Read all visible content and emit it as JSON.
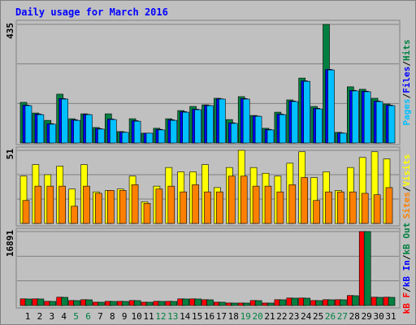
{
  "title": "Daily usage for March 2016",
  "legend_separator": "/",
  "chart_data": [
    {
      "type": "bar",
      "ylim": [
        0,
        435
      ],
      "yticks": [
        435
      ],
      "legend_reversed": true,
      "series": [
        {
          "name": "Hits",
          "color": "#008040",
          "values": [
            149,
            110,
            83,
            179,
            89,
            107,
            57,
            107,
            42,
            89,
            36,
            54,
            89,
            119,
            134,
            140,
            164,
            86,
            170,
            101,
            54,
            113,
            158,
            238,
            134,
            435,
            39,
            206,
            197,
            164,
            143
          ]
        },
        {
          "name": "Files",
          "color": "#0000ff",
          "values": [
            139,
            106,
            71,
            163,
            85,
            105,
            53,
            88,
            40,
            82,
            36,
            50,
            85,
            115,
            124,
            138,
            162,
            74,
            163,
            99,
            50,
            106,
            154,
            228,
            127,
            270,
            37,
            193,
            190,
            154,
            139
          ]
        },
        {
          "name": "Pages",
          "color": "#00c0ff",
          "values": [
            137,
            104,
            69,
            161,
            83,
            104,
            51,
            86,
            39,
            80,
            36,
            48,
            83,
            113,
            122,
            137,
            161,
            72,
            161,
            98,
            48,
            104,
            152,
            226,
            125,
            268,
            36,
            191,
            188,
            152,
            137
          ]
        }
      ]
    },
    {
      "type": "bar",
      "ylim": [
        0,
        51
      ],
      "yticks": [
        51
      ],
      "legend_reversed": true,
      "series": [
        {
          "name": "Visits",
          "color": "#ffff00",
          "values": [
            33,
            41,
            34,
            40,
            24,
            41,
            22,
            23,
            24,
            33,
            15,
            26,
            39,
            36,
            36,
            41,
            25,
            39,
            51,
            39,
            35,
            33,
            42,
            50,
            32,
            36,
            23,
            39,
            46,
            50,
            45
          ]
        },
        {
          "name": "Sites",
          "color": "#ff8000",
          "values": [
            16,
            26,
            26,
            26,
            12,
            26,
            21,
            23,
            23,
            27,
            14,
            24,
            26,
            22,
            27,
            22,
            22,
            33,
            33,
            26,
            26,
            22,
            27,
            32,
            16,
            22,
            22,
            22,
            21,
            20,
            25
          ]
        }
      ]
    },
    {
      "type": "bar",
      "ylim": [
        0,
        16891
      ],
      "yticks": [
        16891
      ],
      "legend_reversed": false,
      "categories": [
        "1",
        "2",
        "3",
        "4",
        "5",
        "6",
        "7",
        "8",
        "9",
        "10",
        "11",
        "12",
        "13",
        "14",
        "15",
        "16",
        "17",
        "18",
        "19",
        "20",
        "21",
        "22",
        "23",
        "24",
        "25",
        "26",
        "27",
        "28",
        "29",
        "30",
        "31"
      ],
      "category_colors": [
        "#000000",
        "#000000",
        "#000000",
        "#000000",
        "#008040",
        "#008040",
        "#000000",
        "#000000",
        "#000000",
        "#000000",
        "#000000",
        "#008040",
        "#008040",
        "#000000",
        "#000000",
        "#000000",
        "#000000",
        "#000000",
        "#008040",
        "#008040",
        "#000000",
        "#000000",
        "#000000",
        "#000000",
        "#000000",
        "#008040",
        "#008040",
        "#000000",
        "#000000",
        "#000000",
        "#000000"
      ],
      "series": [
        {
          "name": "kB F",
          "color": "#ff0000",
          "values": [
            1520,
            1520,
            950,
            1900,
            1140,
            1330,
            760,
            950,
            950,
            1140,
            760,
            950,
            950,
            1520,
            1520,
            1330,
            760,
            570,
            570,
            1140,
            570,
            1330,
            1710,
            1710,
            1140,
            1330,
            1330,
            2280,
            16891,
            1900,
            1900
          ]
        },
        {
          "name": "kB In",
          "color": "#0000ff",
          "values": [
            0,
            0,
            0,
            0,
            0,
            0,
            0,
            0,
            0,
            0,
            0,
            0,
            0,
            0,
            0,
            0,
            0,
            0,
            0,
            0,
            0,
            0,
            0,
            0,
            0,
            0,
            0,
            0,
            0,
            0,
            0
          ]
        },
        {
          "name": "kB Out",
          "color": "#008040",
          "values": [
            1488,
            1488,
            930,
            1860,
            1116,
            1302,
            744,
            930,
            930,
            1116,
            744,
            930,
            930,
            1488,
            1488,
            1302,
            744,
            558,
            558,
            1116,
            558,
            1302,
            1674,
            1674,
            1116,
            1302,
            1302,
            2232,
            16891,
            1860,
            1860
          ]
        }
      ]
    }
  ]
}
